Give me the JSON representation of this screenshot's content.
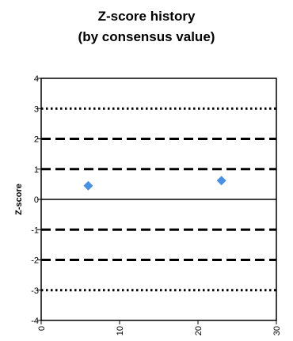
{
  "chart_data": {
    "type": "scatter",
    "title": "Z-score history",
    "subtitle": "(by consensus value)",
    "xlabel": "",
    "ylabel": "Z-score",
    "xlim": [
      0,
      30
    ],
    "ylim": [
      -4,
      4
    ],
    "x_ticks": [
      "0",
      "10",
      "20",
      "30"
    ],
    "y_ticks": [
      "-4",
      "-3",
      "-2",
      "-1",
      "0",
      "1",
      "2",
      "3",
      "4"
    ],
    "grid": false,
    "series": [
      {
        "values": [
          {
            "x": 6,
            "y": 0.45
          },
          {
            "x": 23,
            "y": 0.62
          }
        ],
        "color": "#4a90e2",
        "marker": "diamond"
      }
    ],
    "reference_lines": [
      {
        "y": 3,
        "style": "dotted"
      },
      {
        "y": 2,
        "style": "dashed"
      },
      {
        "y": 1,
        "style": "dashed"
      },
      {
        "y": 0,
        "style": "solid"
      },
      {
        "y": -1,
        "style": "dashed"
      },
      {
        "y": -2,
        "style": "dashed"
      },
      {
        "y": -3,
        "style": "dotted"
      }
    ]
  }
}
